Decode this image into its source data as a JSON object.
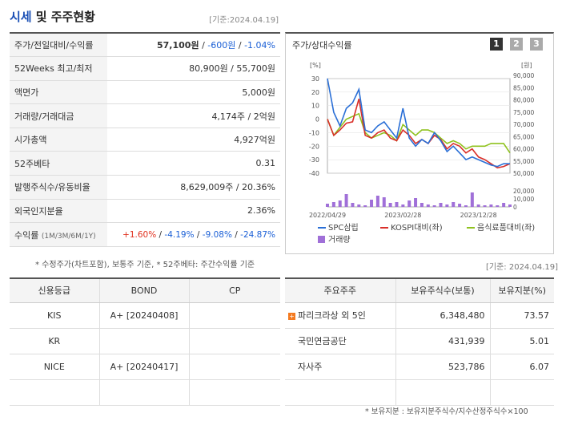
{
  "header": {
    "title_main": "시세",
    "title_sub": "및 주주현황",
    "asof": "[기준:2024.04.19]"
  },
  "price_table": [
    {
      "label": "주가/전일대비/수익률",
      "value": "57,100원",
      "change": "-600원",
      "rate": "-1.04%"
    },
    {
      "label": "52Weeks 최고/최저",
      "value": "80,900원 / 55,700원"
    },
    {
      "label": "액면가",
      "value": "5,000원"
    },
    {
      "label": "거래량/거래대금",
      "value": "4,174주 / 2억원"
    },
    {
      "label": "시가총액",
      "value": "4,927억원"
    },
    {
      "label": "52주베타",
      "value": "0.31"
    },
    {
      "label": "발행주식수/유동비율",
      "value": "8,629,009주 / 20.36%"
    },
    {
      "label": "외국인지분율",
      "value": "2.36%"
    }
  ],
  "returns_row": {
    "label": "수익률",
    "periods": "(1M/3M/6M/1Y)",
    "r1": "+1.60%",
    "r2": "-4.19%",
    "r3": "-9.08%",
    "r4": "-24.87%"
  },
  "note1": "* 수정주가(차트포함), 보통주 기준, * 52주베타: 주간수익률 기준",
  "chart": {
    "title": "주가/상대수익률",
    "pages": [
      "1",
      "2",
      "3"
    ],
    "left_unit": "[%]",
    "right_unit": "[원]",
    "left_ticks": [
      "30",
      "20",
      "10",
      "0",
      "-10",
      "-20",
      "-30",
      "-40"
    ],
    "right_ticks": [
      "90,000",
      "85,000",
      "80,000",
      "75,000",
      "70,000",
      "65,000",
      "60,000",
      "55,000",
      "50,000"
    ],
    "vol_ticks": [
      "20,000",
      "10,000",
      "0"
    ],
    "x_labels": [
      "2022/04/29",
      "2023/02/28",
      "2023/12/28"
    ],
    "legend": [
      {
        "name": "SPC삼립",
        "color": "#2a6fd6"
      },
      {
        "name": "KOSPI대비(좌)",
        "color": "#d9302a"
      },
      {
        "name": "음식료품대비(좌)",
        "color": "#8fc21e"
      },
      {
        "name": "거래량",
        "color": "#a070d8"
      }
    ]
  },
  "chart_data": {
    "type": "line",
    "x": [
      "2022/04/29",
      "",
      "",
      "",
      "",
      "",
      "",
      "",
      "",
      "",
      "",
      "",
      "2023/02/28",
      "",
      "",
      "",
      "",
      "",
      "",
      "",
      "",
      "",
      "",
      "",
      "2023/12/28",
      "",
      "",
      "",
      "",
      ""
    ],
    "series": [
      {
        "name": "SPC삼립",
        "axis": "left",
        "values": [
          30,
          5,
          -5,
          8,
          12,
          22,
          -8,
          -10,
          -5,
          -2,
          -8,
          -14,
          8,
          -14,
          -20,
          -15,
          -18,
          -10,
          -16,
          -24,
          -20,
          -25,
          -30,
          -28,
          -30,
          -32,
          -34,
          -35,
          -33,
          -33
        ]
      },
      {
        "name": "KOSPI대비(좌)",
        "axis": "left",
        "values": [
          0,
          -12,
          -8,
          -3,
          -2,
          15,
          -12,
          -14,
          -10,
          -8,
          -14,
          -16,
          -8,
          -12,
          -18,
          -15,
          -18,
          -12,
          -15,
          -22,
          -18,
          -20,
          -25,
          -22,
          -28,
          -30,
          -33,
          -36,
          -35,
          -33
        ]
      },
      {
        "name": "음식료품대비(좌)",
        "axis": "left",
        "values": [
          0,
          -12,
          -6,
          0,
          2,
          4,
          -10,
          -14,
          -12,
          -10,
          -12,
          -16,
          -4,
          -8,
          -12,
          -8,
          -8,
          -10,
          -14,
          -18,
          -16,
          -18,
          -22,
          -20,
          -20,
          -20,
          -18,
          -18,
          -18,
          -25
        ]
      }
    ],
    "volume": {
      "name": "거래량",
      "values": [
        4000,
        6000,
        8000,
        16000,
        5000,
        3000,
        2000,
        9000,
        14000,
        12000,
        5000,
        6000,
        3000,
        8000,
        11000,
        5000,
        3000,
        2000,
        5000,
        3000,
        6000,
        4000,
        2000,
        18000,
        3000,
        2000,
        3000,
        2000,
        5000,
        3000
      ]
    },
    "ylim_left": [
      -40,
      30
    ],
    "ylim_right": [
      50000,
      90000
    ],
    "ylabel_left": "[%]",
    "ylabel_right": "[원]"
  },
  "note2": "[기준: 2024.04.19]",
  "credit": {
    "headers": [
      "신용등급",
      "BOND",
      "CP"
    ],
    "rows": [
      [
        "KIS",
        "A+ [20240408]",
        ""
      ],
      [
        "KR",
        "",
        ""
      ],
      [
        "NICE",
        "A+ [20240417]",
        ""
      ],
      [
        "",
        "",
        ""
      ]
    ]
  },
  "holders": {
    "headers": [
      "주요주주",
      "보유주식수(보통)",
      "보유지분(%)"
    ],
    "rows": [
      [
        "파리크라상 외 5인",
        "6,348,480",
        "73.57"
      ],
      [
        "국민연금공단",
        "431,939",
        "5.01"
      ],
      [
        "자사주",
        "523,786",
        "6.07"
      ],
      [
        "",
        "",
        ""
      ]
    ]
  },
  "note3": "* 보유지분 : 보유지분주식수/지수산정주식수×100"
}
